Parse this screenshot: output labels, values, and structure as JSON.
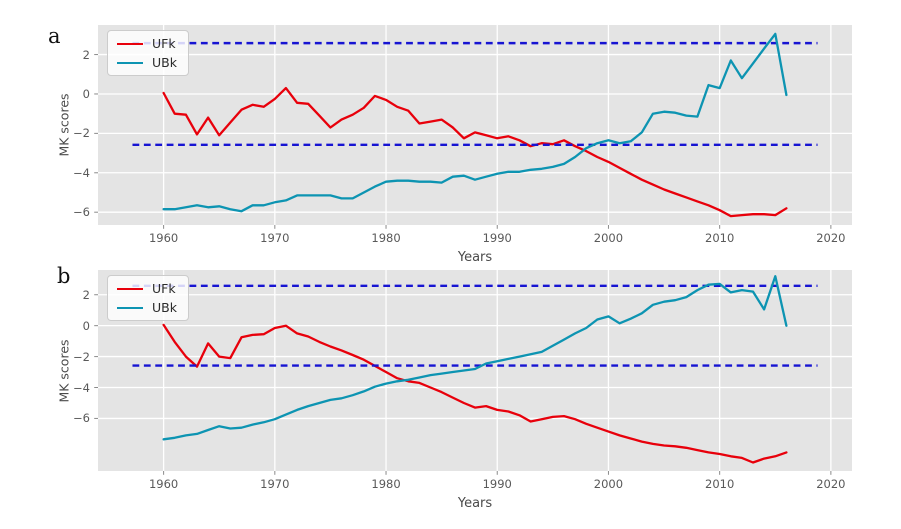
{
  "figure": {
    "panels": [
      {
        "letter": "a"
      },
      {
        "letter": "b"
      }
    ]
  },
  "chart_data": [
    {
      "type": "line",
      "panel_label": "a",
      "title": "",
      "xlabel": "Years",
      "ylabel": "MK scores",
      "x": [
        1960,
        1961,
        1962,
        1963,
        1964,
        1965,
        1966,
        1967,
        1968,
        1969,
        1970,
        1971,
        1972,
        1973,
        1974,
        1975,
        1976,
        1977,
        1978,
        1979,
        1980,
        1981,
        1982,
        1983,
        1984,
        1985,
        1986,
        1987,
        1988,
        1989,
        1990,
        1991,
        1992,
        1993,
        1994,
        1995,
        1996,
        1997,
        1998,
        1999,
        2000,
        2001,
        2002,
        2003,
        2004,
        2005,
        2006,
        2007,
        2008,
        2009,
        2010,
        2011,
        2012,
        2013,
        2014,
        2015,
        2016
      ],
      "series": [
        {
          "name": "UFk",
          "color": "#e8000b",
          "values": [
            0.05,
            -1.0,
            -1.05,
            -2.05,
            -1.2,
            -2.1,
            -1.45,
            -0.8,
            -0.55,
            -0.65,
            -0.25,
            0.3,
            -0.45,
            -0.5,
            -1.1,
            -1.7,
            -1.3,
            -1.05,
            -0.7,
            -0.1,
            -0.3,
            -0.65,
            -0.85,
            -1.5,
            -1.4,
            -1.3,
            -1.7,
            -2.25,
            -1.95,
            -2.1,
            -2.25,
            -2.15,
            -2.35,
            -2.65,
            -2.5,
            -2.55,
            -2.35,
            -2.65,
            -2.9,
            -3.2,
            -3.45,
            -3.75,
            -4.05,
            -4.35,
            -4.6,
            -4.85,
            -5.05,
            -5.25,
            -5.45,
            -5.65,
            -5.9,
            -6.2,
            -6.15,
            -6.1,
            -6.1,
            -6.15,
            -5.8
          ]
        },
        {
          "name": "UBk",
          "color": "#0d94b2",
          "values": [
            -5.85,
            -5.85,
            -5.75,
            -5.65,
            -5.75,
            -5.7,
            -5.85,
            -5.95,
            -5.65,
            -5.65,
            -5.5,
            -5.4,
            -5.15,
            -5.15,
            -5.15,
            -5.15,
            -5.3,
            -5.3,
            -5.0,
            -4.7,
            -4.45,
            -4.4,
            -4.4,
            -4.45,
            -4.45,
            -4.5,
            -4.2,
            -4.15,
            -4.35,
            -4.2,
            -4.05,
            -3.95,
            -3.95,
            -3.85,
            -3.8,
            -3.7,
            -3.55,
            -3.2,
            -2.75,
            -2.5,
            -2.35,
            -2.5,
            -2.4,
            -1.95,
            -1.0,
            -0.9,
            -0.95,
            -1.1,
            -1.15,
            0.45,
            0.3,
            1.7,
            0.8,
            1.55,
            2.3,
            3.05,
            -0.05
          ]
        }
      ],
      "significance_lines": {
        "values": [
          2.58,
          -2.58
        ],
        "color": "#1714d2",
        "style": "dashed",
        "x_start": 1957.2,
        "x_end": 2018.8
      },
      "xlim": [
        1954.1,
        2021.9
      ],
      "ylim": [
        -6.65,
        3.5
      ],
      "xticks": [
        1960,
        1970,
        1980,
        1990,
        2000,
        2010,
        2020
      ],
      "yticks": [
        2,
        0,
        -2,
        -4,
        -6
      ],
      "grid": true,
      "grid_color": "#ffffff",
      "plot_background": "#e4e4e4",
      "legend_position": "upper left",
      "legend_labels": [
        "UFk",
        "UBk"
      ]
    },
    {
      "type": "line",
      "panel_label": "b",
      "title": "",
      "xlabel": "Years",
      "ylabel": "MK scores",
      "x": [
        1960,
        1961,
        1962,
        1963,
        1964,
        1965,
        1966,
        1967,
        1968,
        1969,
        1970,
        1971,
        1972,
        1973,
        1974,
        1975,
        1976,
        1977,
        1978,
        1979,
        1980,
        1981,
        1982,
        1983,
        1984,
        1985,
        1986,
        1987,
        1988,
        1989,
        1990,
        1991,
        1992,
        1993,
        1994,
        1995,
        1996,
        1997,
        1998,
        1999,
        2000,
        2001,
        2002,
        2003,
        2004,
        2005,
        2006,
        2007,
        2008,
        2009,
        2010,
        2011,
        2012,
        2013,
        2014,
        2015,
        2016
      ],
      "series": [
        {
          "name": "UFk",
          "color": "#e8000b",
          "values": [
            0.05,
            -1.05,
            -2.0,
            -2.65,
            -1.15,
            -2.0,
            -2.1,
            -0.75,
            -0.6,
            -0.55,
            -0.15,
            0.0,
            -0.5,
            -0.7,
            -1.05,
            -1.35,
            -1.6,
            -1.9,
            -2.2,
            -2.6,
            -3.0,
            -3.4,
            -3.6,
            -3.7,
            -4.0,
            -4.3,
            -4.65,
            -5.0,
            -5.3,
            -5.2,
            -5.45,
            -5.55,
            -5.8,
            -6.2,
            -6.05,
            -5.9,
            -5.85,
            -6.05,
            -6.35,
            -6.6,
            -6.85,
            -7.1,
            -7.3,
            -7.5,
            -7.65,
            -7.75,
            -7.8,
            -7.9,
            -8.05,
            -8.2,
            -8.3,
            -8.45,
            -8.55,
            -8.85,
            -8.6,
            -8.45,
            -8.2
          ]
        },
        {
          "name": "UBk",
          "color": "#0d94b2",
          "values": [
            -7.35,
            -7.25,
            -7.1,
            -7.0,
            -6.75,
            -6.5,
            -6.65,
            -6.6,
            -6.4,
            -6.25,
            -6.05,
            -5.75,
            -5.45,
            -5.2,
            -5.0,
            -4.8,
            -4.7,
            -4.5,
            -4.25,
            -3.95,
            -3.75,
            -3.6,
            -3.5,
            -3.35,
            -3.2,
            -3.1,
            -3.0,
            -2.9,
            -2.8,
            -2.45,
            -2.3,
            -2.15,
            -2.0,
            -1.85,
            -1.7,
            -1.3,
            -0.9,
            -0.5,
            -0.15,
            0.4,
            0.6,
            0.15,
            0.45,
            0.8,
            1.35,
            1.55,
            1.65,
            1.85,
            2.3,
            2.65,
            2.7,
            2.15,
            2.3,
            2.2,
            1.05,
            3.2,
            0.0
          ]
        }
      ],
      "significance_lines": {
        "values": [
          2.58,
          -2.58
        ],
        "color": "#1714d2",
        "style": "dashed",
        "x_start": 1957.2,
        "x_end": 2018.8
      },
      "xlim": [
        1954.1,
        2021.9
      ],
      "ylim": [
        -9.4,
        3.6
      ],
      "xticks": [
        1960,
        1970,
        1980,
        1990,
        2000,
        2010,
        2020
      ],
      "yticks": [
        2,
        0,
        -2,
        -4,
        -6
      ],
      "grid": true,
      "grid_color": "#ffffff",
      "plot_background": "#e4e4e4",
      "legend_position": "upper left",
      "legend_labels": [
        "UFk",
        "UBk"
      ]
    }
  ]
}
